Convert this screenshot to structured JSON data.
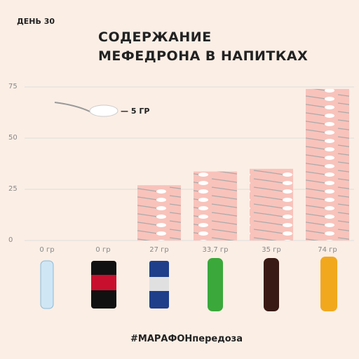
{
  "header": "ДЕНЬ 30",
  "footer": "#МАРАФОНпередоза",
  "chart_data": {
    "type": "bar",
    "title": "СОДЕРЖАНИЕ МЕФЕДРОНА В НАПИТКАХ",
    "annotation": "— 5 ГР",
    "values": [
      0,
      0,
      27,
      33.7,
      35,
      74
    ],
    "value_labels": [
      "0 гр",
      "0 гр",
      "27 гр",
      "33,7 гр",
      "35 гр",
      "74 гр"
    ],
    "color": "#f8c3bb",
    "ylim": [
      0,
      75
    ],
    "yticks": [
      0,
      25,
      50,
      75
    ],
    "grid": true
  }
}
